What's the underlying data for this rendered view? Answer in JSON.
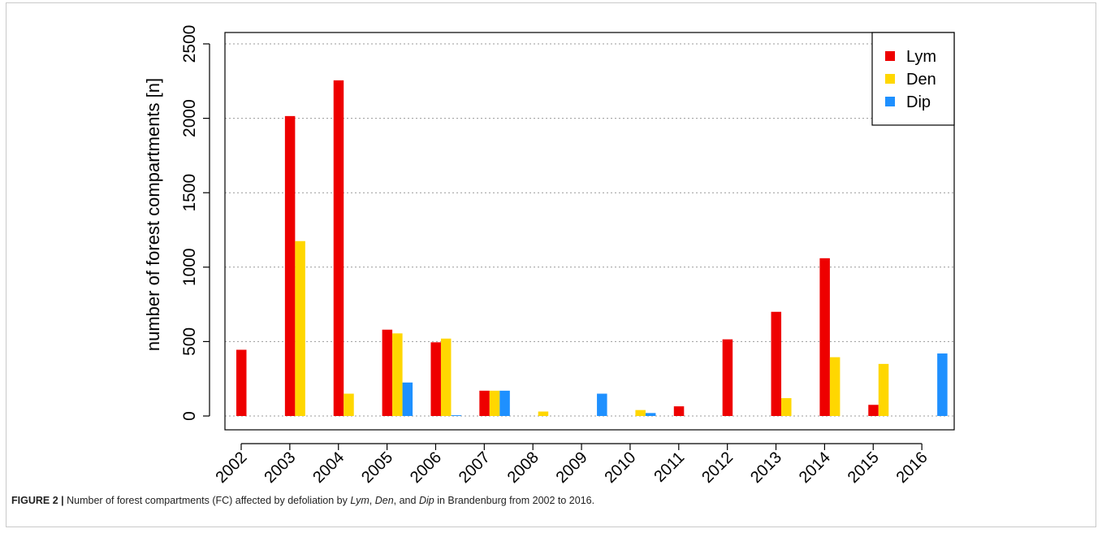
{
  "figure": {
    "caption_label": "FIGURE 2 |",
    "caption_part1": "Number of forest compartments (FC) affected by defoliation by",
    "caption_lym": "Lym",
    "caption_sep1": ",",
    "caption_den": "Den",
    "caption_sep2": ", and",
    "caption_dip": "Dip",
    "caption_end": "in Brandenburg from 2002 to 2016."
  },
  "chart_data": {
    "type": "bar",
    "title": "",
    "xlabel": "",
    "ylabel": "number of forest compartments [n]",
    "ylim": [
      0,
      2500
    ],
    "yticks": [
      0,
      500,
      1000,
      1500,
      2000,
      2500
    ],
    "grid": "horizontal dotted",
    "legend_position": "top-right",
    "categories": [
      "2002",
      "2003",
      "2004",
      "2005",
      "2006",
      "2007",
      "2008",
      "2009",
      "2010",
      "2011",
      "2012",
      "2013",
      "2014",
      "2015",
      "2016"
    ],
    "series": [
      {
        "name": "Lym",
        "color": "#ee0000",
        "values": [
          445,
          2015,
          2255,
          580,
          495,
          170,
          0,
          0,
          0,
          65,
          515,
          700,
          1060,
          75,
          0
        ]
      },
      {
        "name": "Den",
        "color": "#ffd700",
        "values": [
          0,
          1175,
          150,
          555,
          520,
          170,
          30,
          0,
          40,
          0,
          0,
          120,
          395,
          350,
          0
        ]
      },
      {
        "name": "Dip",
        "color": "#1e90ff",
        "values": [
          0,
          0,
          0,
          225,
          5,
          170,
          0,
          150,
          20,
          0,
          0,
          0,
          0,
          0,
          420
        ]
      }
    ]
  }
}
